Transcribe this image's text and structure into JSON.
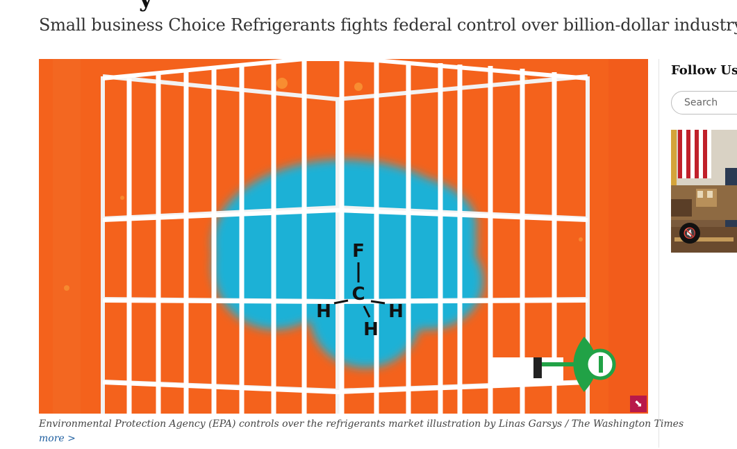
{
  "article": {
    "subtitle": "Small business Choice Refrigerants fights federal control over billion-dollar industry",
    "hero": {
      "molecule_top": "F",
      "molecule_center": "C",
      "molecule_left": "H",
      "molecule_right": "H",
      "molecule_bottom": "H",
      "expand_icon": "expand-icon"
    },
    "caption": "Environmental Protection Agency (EPA) controls over the refrigerants market illustration by Linas Garsys / The Washington Times",
    "more_link": "more >"
  },
  "sidebar": {
    "follow_title": "Follow Us",
    "search_placeholder": "Search",
    "video": {
      "mute_icon": "muted-speaker-icon"
    }
  },
  "colors": {
    "background_orange": "#f4621c",
    "cloud_blue": "#1fb1d6",
    "key_green": "#21a246",
    "caption_link": "#1f5fa0",
    "expand_button": "#b8194a"
  }
}
